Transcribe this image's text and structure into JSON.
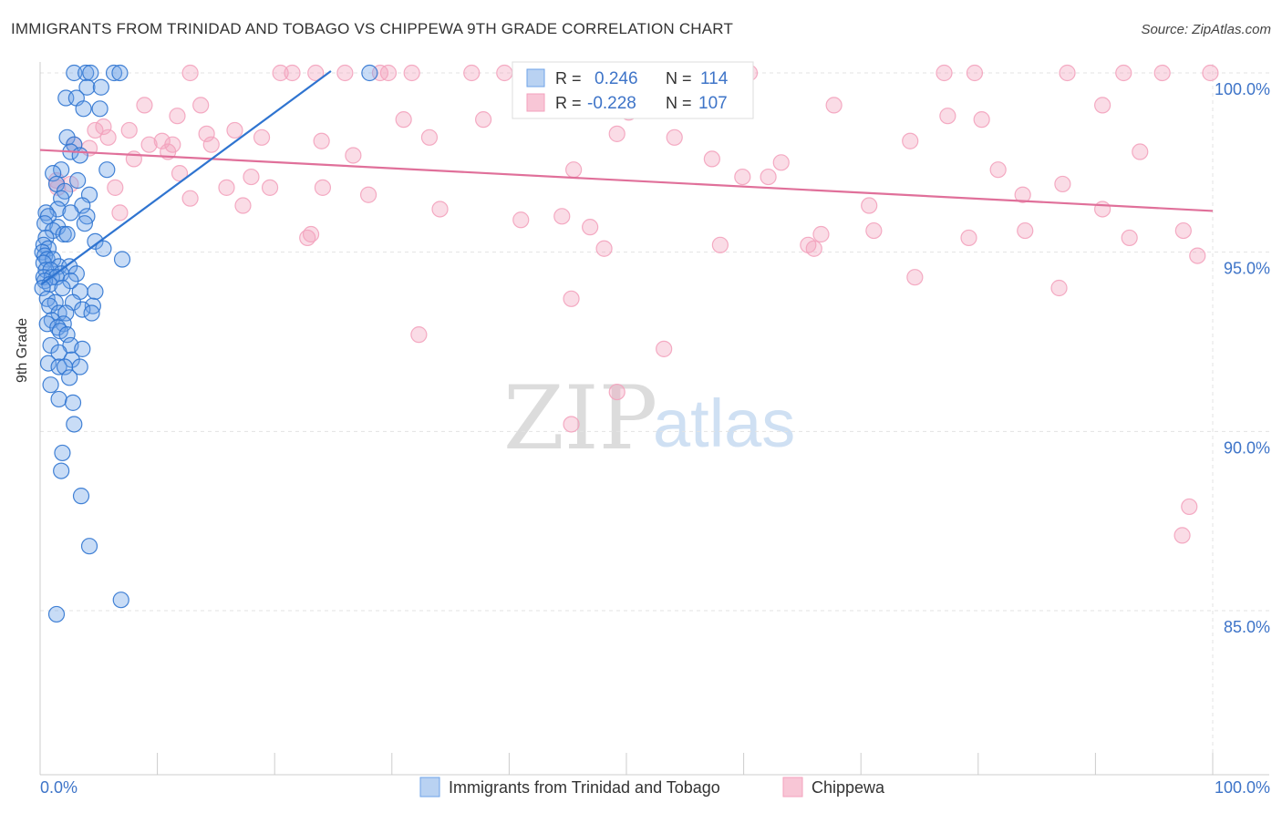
{
  "title": "IMMIGRANTS FROM TRINIDAD AND TOBAGO VS CHIPPEWA 9TH GRADE CORRELATION CHART",
  "source": "Source: ZipAtlas.com",
  "watermark": {
    "zip": "ZIP",
    "atlas": "atlas"
  },
  "colors": {
    "blue": "#6ea3e8",
    "blue_line": "#2f74d0",
    "pink": "#f3a2bd",
    "pink_line": "#e0709a",
    "value_text": "#3e74c8"
  },
  "chart_data": {
    "type": "scatter",
    "xlabel": "",
    "ylabel": "9th Grade",
    "xlim": [
      0,
      100
    ],
    "ylim": [
      80.5,
      100.7
    ],
    "x_tick_labels": [
      {
        "x": 0,
        "label": "0.0%"
      },
      {
        "x": 100,
        "label": "100.0%"
      }
    ],
    "y_ticks": [
      {
        "y": 85,
        "label": "85.0%"
      },
      {
        "y": 90,
        "label": "90.0%"
      },
      {
        "y": 95,
        "label": "95.0%"
      },
      {
        "y": 100,
        "label": "100.0%"
      }
    ],
    "legend_stats": [
      {
        "r_label": "R =",
        "r": "0.246",
        "n_label": "N =",
        "n": "114"
      },
      {
        "r_label": "R =",
        "r": "-0.228",
        "n_label": "N =",
        "n": "107"
      }
    ],
    "series": [
      {
        "name": "Immigrants from Trinidad and Tobago",
        "trend": {
          "x0": 0.1,
          "y0": 94.1,
          "x1": 24.8,
          "y1": 100.05
        },
        "points": [
          [
            2.9,
            100.0
          ],
          [
            3.9,
            100.0
          ],
          [
            4.3,
            100.0
          ],
          [
            6.3,
            100.0
          ],
          [
            6.8,
            100.0
          ],
          [
            28.1,
            100.0
          ],
          [
            4.0,
            99.6
          ],
          [
            5.2,
            99.6
          ],
          [
            2.2,
            99.3
          ],
          [
            3.1,
            99.3
          ],
          [
            5.1,
            99.0
          ],
          [
            3.7,
            99.0
          ],
          [
            2.3,
            98.2
          ],
          [
            2.9,
            98.0
          ],
          [
            2.6,
            97.8
          ],
          [
            3.4,
            97.7
          ],
          [
            5.7,
            97.3
          ],
          [
            1.8,
            97.3
          ],
          [
            1.1,
            97.2
          ],
          [
            3.2,
            97.0
          ],
          [
            1.4,
            96.9
          ],
          [
            2.1,
            96.7
          ],
          [
            4.2,
            96.6
          ],
          [
            1.8,
            96.5
          ],
          [
            3.6,
            96.3
          ],
          [
            1.5,
            96.2
          ],
          [
            2.6,
            96.1
          ],
          [
            0.5,
            96.1
          ],
          [
            0.7,
            96.0
          ],
          [
            4.0,
            96.0
          ],
          [
            0.4,
            95.8
          ],
          [
            1.5,
            95.7
          ],
          [
            3.8,
            95.8
          ],
          [
            1.1,
            95.6
          ],
          [
            2.0,
            95.5
          ],
          [
            0.5,
            95.4
          ],
          [
            2.3,
            95.5
          ],
          [
            4.7,
            95.3
          ],
          [
            0.3,
            95.2
          ],
          [
            0.7,
            95.1
          ],
          [
            5.4,
            95.1
          ],
          [
            0.2,
            95.0
          ],
          [
            0.4,
            94.9
          ],
          [
            0.6,
            94.8
          ],
          [
            1.1,
            94.8
          ],
          [
            7.0,
            94.8
          ],
          [
            0.3,
            94.7
          ],
          [
            1.6,
            94.6
          ],
          [
            2.5,
            94.6
          ],
          [
            0.5,
            94.5
          ],
          [
            0.9,
            94.5
          ],
          [
            1.8,
            94.4
          ],
          [
            3.1,
            94.4
          ],
          [
            0.3,
            94.3
          ],
          [
            1.0,
            94.3
          ],
          [
            1.4,
            94.3
          ],
          [
            2.6,
            94.2
          ],
          [
            0.4,
            94.2
          ],
          [
            0.8,
            94.1
          ],
          [
            0.2,
            94.0
          ],
          [
            1.9,
            94.0
          ],
          [
            3.4,
            93.9
          ],
          [
            4.7,
            93.9
          ],
          [
            0.6,
            93.7
          ],
          [
            2.8,
            93.6
          ],
          [
            1.3,
            93.6
          ],
          [
            0.8,
            93.5
          ],
          [
            4.5,
            93.5
          ],
          [
            3.6,
            93.4
          ],
          [
            1.6,
            93.3
          ],
          [
            2.2,
            93.3
          ],
          [
            4.4,
            93.3
          ],
          [
            1.0,
            93.1
          ],
          [
            0.6,
            93.0
          ],
          [
            2.0,
            93.0
          ],
          [
            1.5,
            92.9
          ],
          [
            1.7,
            92.8
          ],
          [
            2.3,
            92.7
          ],
          [
            0.9,
            92.4
          ],
          [
            2.6,
            92.4
          ],
          [
            3.6,
            92.3
          ],
          [
            1.6,
            92.2
          ],
          [
            2.7,
            92.0
          ],
          [
            0.7,
            91.9
          ],
          [
            1.6,
            91.8
          ],
          [
            2.1,
            91.8
          ],
          [
            3.4,
            91.8
          ],
          [
            2.5,
            91.5
          ],
          [
            0.9,
            91.3
          ],
          [
            1.6,
            90.9
          ],
          [
            2.8,
            90.8
          ],
          [
            2.9,
            90.2
          ],
          [
            1.9,
            89.4
          ],
          [
            1.8,
            88.9
          ],
          [
            3.5,
            88.2
          ],
          [
            4.2,
            86.8
          ],
          [
            6.9,
            85.3
          ],
          [
            1.4,
            84.9
          ]
        ]
      },
      {
        "name": "Chippewa",
        "trend": {
          "x0": 0.0,
          "y0": 97.85,
          "x1": 100.0,
          "y1": 96.15
        },
        "points": [
          [
            12.8,
            100.0
          ],
          [
            20.5,
            100.0
          ],
          [
            21.5,
            100.0
          ],
          [
            23.5,
            100.0
          ],
          [
            26.0,
            100.0
          ],
          [
            29.0,
            100.0
          ],
          [
            29.7,
            100.0
          ],
          [
            31.7,
            100.0
          ],
          [
            36.8,
            100.0
          ],
          [
            39.6,
            100.0
          ],
          [
            52.5,
            100.0
          ],
          [
            60.5,
            100.0
          ],
          [
            77.1,
            100.0
          ],
          [
            79.7,
            100.0
          ],
          [
            87.6,
            100.0
          ],
          [
            92.4,
            100.0
          ],
          [
            95.7,
            100.0
          ],
          [
            99.8,
            100.0
          ],
          [
            8.9,
            99.1
          ],
          [
            13.7,
            99.1
          ],
          [
            67.7,
            99.1
          ],
          [
            90.6,
            99.1
          ],
          [
            11.7,
            98.8
          ],
          [
            31.0,
            98.7
          ],
          [
            37.8,
            98.7
          ],
          [
            50.2,
            98.9
          ],
          [
            77.4,
            98.8
          ],
          [
            80.3,
            98.7
          ],
          [
            5.4,
            98.5
          ],
          [
            4.7,
            98.4
          ],
          [
            7.6,
            98.4
          ],
          [
            14.2,
            98.3
          ],
          [
            16.6,
            98.4
          ],
          [
            5.8,
            98.2
          ],
          [
            18.9,
            98.2
          ],
          [
            24.0,
            98.1
          ],
          [
            33.2,
            98.2
          ],
          [
            49.2,
            98.3
          ],
          [
            54.1,
            98.2
          ],
          [
            74.2,
            98.1
          ],
          [
            9.3,
            98.0
          ],
          [
            11.3,
            98.0
          ],
          [
            14.6,
            98.0
          ],
          [
            2.9,
            98.0
          ],
          [
            4.2,
            97.9
          ],
          [
            10.4,
            98.1
          ],
          [
            10.9,
            97.8
          ],
          [
            93.8,
            97.8
          ],
          [
            26.7,
            97.7
          ],
          [
            57.3,
            97.6
          ],
          [
            63.2,
            97.5
          ],
          [
            8.0,
            97.6
          ],
          [
            45.5,
            97.3
          ],
          [
            81.7,
            97.3
          ],
          [
            11.9,
            97.2
          ],
          [
            18.0,
            97.1
          ],
          [
            59.9,
            97.1
          ],
          [
            62.1,
            97.1
          ],
          [
            1.5,
            96.8
          ],
          [
            1.4,
            97.0
          ],
          [
            2.6,
            96.9
          ],
          [
            6.4,
            96.8
          ],
          [
            15.9,
            96.8
          ],
          [
            19.6,
            96.8
          ],
          [
            24.1,
            96.8
          ],
          [
            87.2,
            96.9
          ],
          [
            12.8,
            96.5
          ],
          [
            28.0,
            96.6
          ],
          [
            83.8,
            96.6
          ],
          [
            17.3,
            96.3
          ],
          [
            34.1,
            96.2
          ],
          [
            70.7,
            96.3
          ],
          [
            90.6,
            96.2
          ],
          [
            6.8,
            96.1
          ],
          [
            44.5,
            96.0
          ],
          [
            41.0,
            95.9
          ],
          [
            46.9,
            95.7
          ],
          [
            71.1,
            95.6
          ],
          [
            84.0,
            95.6
          ],
          [
            97.5,
            95.6
          ],
          [
            22.8,
            95.4
          ],
          [
            23.1,
            95.5
          ],
          [
            66.6,
            95.5
          ],
          [
            79.2,
            95.4
          ],
          [
            92.9,
            95.4
          ],
          [
            58.0,
            95.2
          ],
          [
            65.5,
            95.2
          ],
          [
            66.0,
            95.1
          ],
          [
            48.1,
            95.1
          ],
          [
            98.7,
            94.9
          ],
          [
            74.6,
            94.3
          ],
          [
            86.9,
            94.0
          ],
          [
            45.3,
            93.7
          ],
          [
            32.3,
            92.7
          ],
          [
            53.2,
            92.3
          ],
          [
            49.2,
            91.1
          ],
          [
            45.3,
            90.2
          ],
          [
            98.0,
            87.9
          ],
          [
            97.4,
            87.1
          ]
        ]
      }
    ]
  }
}
